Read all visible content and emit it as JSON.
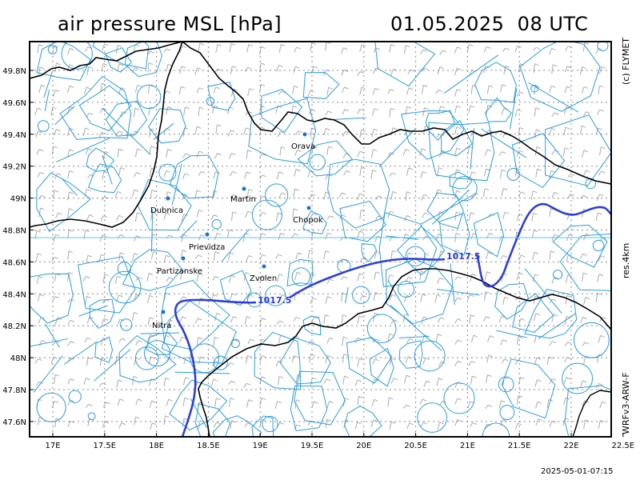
{
  "header": {
    "title": "air pressure MSL [hPa]",
    "datetime": "01.05.2025  08 UTC"
  },
  "side_labels": {
    "copyright": "(c) FLYMET",
    "resolution": "res.4km",
    "model": "WRFv3-ARW-F"
  },
  "footer": {
    "timestamp": "2025-05-01-07:15"
  },
  "axes": {
    "lat_labels": [
      "49.8N",
      "49.6N",
      "49.4N",
      "49.2N",
      "49N",
      "48.8N",
      "48.6N",
      "48.4N",
      "48.2N",
      "48N",
      "47.8N",
      "47.6N"
    ],
    "lon_labels": [
      "17E",
      "17.5E",
      "18E",
      "18.5E",
      "19E",
      "19.5E",
      "20E",
      "20.5E",
      "21E",
      "21.5E",
      "22E",
      "22.5E"
    ]
  },
  "cities": [
    {
      "name": "Orava"
    },
    {
      "name": "Dubnica"
    },
    {
      "name": "Martin"
    },
    {
      "name": "Chopok"
    },
    {
      "name": "Prievidza"
    },
    {
      "name": "Partizanske"
    },
    {
      "name": "Zvolen"
    },
    {
      "name": "Nitra"
    }
  ],
  "isobars": [
    {
      "label": "1017.5"
    },
    {
      "label": "1017.5"
    }
  ],
  "colors": {
    "isobar": "#2d3fd6",
    "terrain": "#2a9ee0",
    "border": "#000000",
    "grid": "#888888",
    "wind": "#aaaaaa"
  }
}
